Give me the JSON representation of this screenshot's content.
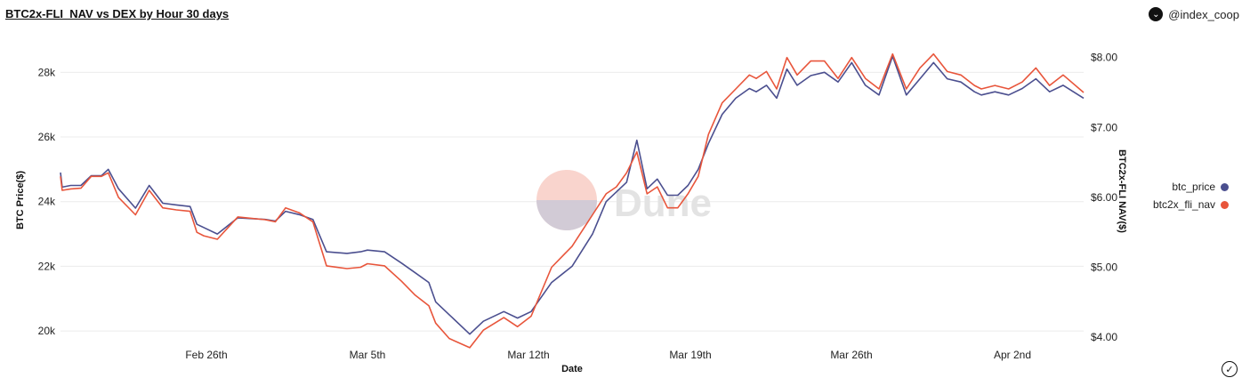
{
  "header": {
    "title": "BTC2x-FLI_NAV vs DEX by Hour 30 days",
    "brand": "@index_coop",
    "brand_icon": "chevron-down-circle-icon"
  },
  "watermark": "Dune",
  "chart_data": {
    "type": "line",
    "title": "BTC2x-FLI_NAV vs DEX by Hour 30 days",
    "xlabel": "Date",
    "ylabel_left": "BTC Price($)",
    "ylabel_right": "BTC2x-FLI NAV($)",
    "x_ticks": [
      "Feb 26th",
      "Mar 5th",
      "Mar 12th",
      "Mar 19th",
      "Mar 26th",
      "Apr 2nd"
    ],
    "x_range": [
      0,
      30
    ],
    "x_tick_positions": [
      4,
      11,
      18,
      25,
      32,
      39
    ],
    "y_left": {
      "ticks": [
        "20k",
        "22k",
        "24k",
        "26k",
        "28k"
      ],
      "values": [
        20000,
        22000,
        24000,
        26000,
        28000
      ],
      "range": [
        19700,
        29000
      ]
    },
    "y_right": {
      "ticks": [
        "$4.00",
        "$5.00",
        "$6.00",
        "$7.00",
        "$8.00"
      ],
      "values": [
        4,
        5,
        6,
        7,
        8
      ],
      "range": [
        3.95,
        8.25
      ]
    },
    "legend_position": "right",
    "grid": "horizontal",
    "series": [
      {
        "name": "btc_price",
        "axis": "left",
        "color": "#4b4f8f",
        "x": [
          0,
          0.05,
          0.3,
          0.6,
          0.9,
          1.2,
          1.4,
          1.7,
          2.2,
          2.6,
          3.0,
          3.4,
          3.8,
          4.0,
          4.2,
          4.6,
          5.2,
          6.0,
          6.3,
          6.6,
          7.0,
          7.4,
          7.8,
          8.4,
          8.8,
          9.0,
          9.5,
          10.0,
          10.4,
          10.8,
          11.0,
          11.4,
          12.0,
          12.4,
          13.0,
          13.4,
          13.8,
          14.4,
          15.0,
          15.6,
          16.0,
          16.3,
          16.6,
          16.9,
          17.2,
          17.5,
          17.8,
          18.1,
          18.4,
          18.7,
          19.0,
          19.4,
          19.8,
          20.2,
          20.4,
          20.7,
          21.0,
          21.3,
          21.6,
          22.0,
          22.4,
          22.8,
          23.2,
          23.6,
          24.0,
          24.4,
          24.8,
          25.2,
          25.6,
          26.0,
          26.4,
          26.8,
          27.0,
          27.4,
          27.8,
          28.2,
          28.6,
          29.0,
          29.4,
          30.0
        ],
        "y": [
          24900,
          24450,
          24500,
          24500,
          24800,
          24800,
          25000,
          24400,
          23800,
          24500,
          23950,
          23900,
          23850,
          23300,
          23200,
          23000,
          23500,
          23450,
          23400,
          23700,
          23600,
          23450,
          22450,
          22400,
          22450,
          22500,
          22450,
          22100,
          21800,
          21500,
          20900,
          20500,
          19900,
          20300,
          20600,
          20400,
          20600,
          21500,
          22000,
          23000,
          24000,
          24300,
          24600,
          25900,
          24400,
          24700,
          24200,
          24200,
          24500,
          25000,
          25800,
          26700,
          27200,
          27500,
          27400,
          27600,
          27200,
          28100,
          27600,
          27900,
          28000,
          27700,
          28300,
          27600,
          27300,
          28500,
          27300,
          27800,
          28300,
          27800,
          27700,
          27400,
          27300,
          27400,
          27300,
          27500,
          27800,
          27400,
          27600,
          27200
        ],
        "y_reference": "Approximate hourly BTC price over 30 days"
      },
      {
        "name": "btc2x_fli_nav",
        "axis": "right",
        "color": "#e8553b",
        "x": [
          0,
          0.05,
          0.3,
          0.6,
          0.9,
          1.2,
          1.4,
          1.7,
          2.2,
          2.6,
          3.0,
          3.4,
          3.8,
          4.0,
          4.2,
          4.6,
          5.2,
          6.0,
          6.3,
          6.6,
          7.0,
          7.4,
          7.8,
          8.4,
          8.8,
          9.0,
          9.5,
          10.0,
          10.4,
          10.8,
          11.0,
          11.4,
          12.0,
          12.4,
          13.0,
          13.4,
          13.8,
          14.4,
          15.0,
          15.6,
          16.0,
          16.3,
          16.6,
          16.9,
          17.2,
          17.5,
          17.8,
          18.1,
          18.4,
          18.7,
          19.0,
          19.4,
          19.8,
          20.2,
          20.4,
          20.7,
          21.0,
          21.3,
          21.6,
          22.0,
          22.4,
          22.8,
          23.2,
          23.6,
          24.0,
          24.4,
          24.8,
          25.2,
          25.6,
          26.0,
          26.4,
          26.8,
          27.0,
          27.4,
          27.8,
          28.2,
          28.6,
          29.0,
          29.4,
          30.0
        ],
        "y": [
          6.3,
          6.1,
          6.12,
          6.13,
          6.3,
          6.3,
          6.35,
          6.0,
          5.75,
          6.1,
          5.85,
          5.82,
          5.8,
          5.5,
          5.45,
          5.4,
          5.72,
          5.68,
          5.65,
          5.85,
          5.78,
          5.65,
          5.02,
          4.98,
          5.0,
          5.05,
          5.02,
          4.8,
          4.6,
          4.45,
          4.2,
          3.98,
          3.85,
          4.1,
          4.28,
          4.15,
          4.3,
          5.0,
          5.3,
          5.75,
          6.05,
          6.15,
          6.35,
          6.65,
          6.05,
          6.15,
          5.85,
          5.85,
          6.05,
          6.3,
          6.9,
          7.35,
          7.55,
          7.75,
          7.7,
          7.8,
          7.55,
          8.0,
          7.75,
          7.95,
          7.95,
          7.7,
          8.0,
          7.7,
          7.55,
          8.05,
          7.55,
          7.85,
          8.05,
          7.8,
          7.75,
          7.6,
          7.55,
          7.6,
          7.55,
          7.65,
          7.85,
          7.6,
          7.75,
          7.5
        ],
        "y_reference": "Approximate hourly NAV over 30 days"
      }
    ]
  },
  "legend": {
    "items": [
      {
        "label": "btc_price",
        "color": "#4b4f8f"
      },
      {
        "label": "btc2x_fli_nav",
        "color": "#e8553b"
      }
    ]
  },
  "footer": {
    "check_icon": "check-circle-icon"
  }
}
